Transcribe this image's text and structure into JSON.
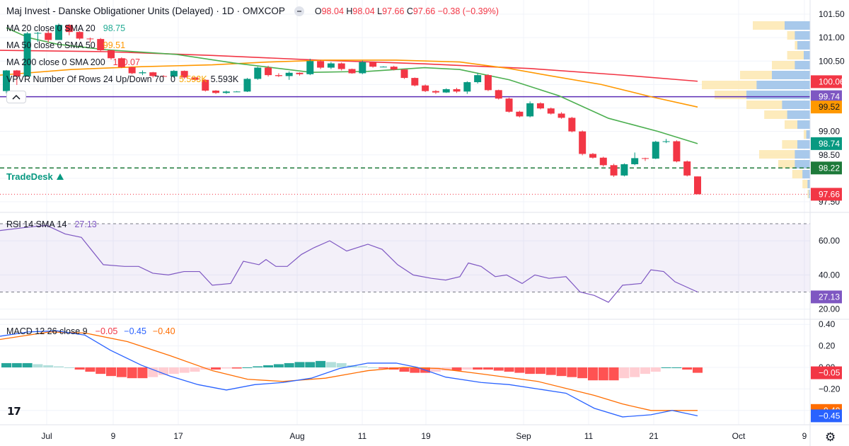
{
  "header": {
    "title": "Maj Invest - Danske Obligationer Units (Delayed) · 1D · OMXCOP",
    "ohlc": {
      "o_label": "O",
      "o": "98.04",
      "h_label": "H",
      "h": "98.04",
      "l_label": "L",
      "l": "97.66",
      "c_label": "C",
      "c": "97.66",
      "change": "−0.38 (−0.39%)"
    }
  },
  "indicators": {
    "ma20": {
      "label": "MA 20 close 0 SMA 20",
      "value": "98.75",
      "color": "#22ab94"
    },
    "ma50": {
      "label": "MA 50 close 0 SMA 50",
      "value": "99.51",
      "color": "#ff9800"
    },
    "ma200": {
      "label": "MA 200 close 0 SMA 200",
      "value": "100.07",
      "color": "#f23645"
    },
    "vpvr": {
      "label": "VPVR Number Of Rows 24 Up/Down 70",
      "v1": "0",
      "v2": "5.593K",
      "v3": "5.593K"
    },
    "rsi": {
      "label": "RSI 14 SMA 14",
      "value": "27.13",
      "color": "#7e57c2"
    },
    "macd": {
      "label": "MACD 12 26 close 9",
      "hist": "−0.05",
      "macd": "−0.45",
      "signal": "−0.40"
    }
  },
  "brand": "TradeDesk",
  "tv_logo": "17",
  "gear_icon": "⚙",
  "price_axis": {
    "ticks": [
      "101.50",
      "101.00",
      "100.50",
      "99.00",
      "98.50",
      "97.50"
    ],
    "tick_values": [
      101.5,
      101.0,
      100.5,
      99.0,
      98.5,
      97.5
    ],
    "badges": [
      {
        "text": "100.06",
        "value": 100.06,
        "color": "#f23645"
      },
      {
        "text": "99.74",
        "value": 99.74,
        "color": "#7e57c2"
      },
      {
        "text": "99.52",
        "value": 99.52,
        "color": "#ff9800"
      },
      {
        "text": "98.74",
        "value": 98.74,
        "color": "#089981"
      },
      {
        "text": "98.22",
        "value": 98.22,
        "color": "#1e7a3a"
      },
      {
        "text": "97.66",
        "value": 97.66,
        "color": "#f23645"
      }
    ]
  },
  "rsi_axis": {
    "ticks": [
      "60.00",
      "40.00",
      "20.00"
    ],
    "tick_values": [
      60,
      40,
      20
    ],
    "badge": "27.13"
  },
  "macd_axis": {
    "ticks": [
      "0.40",
      "0.20",
      "0.00",
      "−0.20"
    ],
    "tick_values": [
      0.4,
      0.2,
      0.0,
      -0.2
    ],
    "badges": [
      {
        "text": "−0.05",
        "value": -0.05,
        "color": "#f23645"
      },
      {
        "text": "−0.40",
        "value": -0.4,
        "color": "#ff6d00"
      },
      {
        "text": "−0.45",
        "value": -0.45,
        "color": "#2962ff"
      }
    ]
  },
  "time_axis": [
    "Jul",
    "9",
    "17",
    "Aug",
    "11",
    "19",
    "Sep",
    "11",
    "21",
    "Oct",
    "9"
  ],
  "chart_data": {
    "type": "candlestick",
    "candles": [
      [
        99.86,
        100.31,
        99.81,
        100.3
      ],
      [
        100.3,
        100.31,
        99.99,
        100.17
      ],
      [
        100.17,
        101.12,
        100.17,
        101.09
      ],
      [
        101.09,
        101.12,
        100.91,
        101.1
      ],
      [
        101.1,
        101.16,
        100.9,
        100.95
      ],
      [
        100.95,
        101.3,
        100.95,
        101.27
      ],
      [
        101.27,
        101.29,
        101.05,
        101.12
      ],
      [
        101.12,
        101.14,
        100.95,
        100.98
      ],
      [
        100.98,
        101.0,
        100.9,
        100.97
      ],
      [
        100.97,
        100.99,
        100.71,
        100.73
      ],
      [
        100.73,
        100.74,
        100.53,
        100.56
      ],
      [
        100.56,
        100.58,
        100.35,
        100.37
      ],
      [
        100.37,
        100.38,
        100.22,
        100.24
      ],
      [
        100.24,
        100.3,
        100.2,
        100.26
      ],
      [
        100.26,
        100.27,
        100.15,
        100.18
      ],
      [
        100.18,
        100.2,
        100.16,
        100.17
      ],
      [
        100.17,
        100.31,
        100.14,
        100.29
      ],
      [
        100.29,
        100.3,
        100.12,
        100.15
      ],
      [
        100.15,
        100.17,
        100.08,
        100.1
      ],
      [
        100.1,
        100.11,
        99.85,
        99.87
      ],
      [
        99.87,
        99.88,
        99.8,
        99.82
      ],
      [
        99.82,
        99.87,
        99.8,
        99.85
      ],
      [
        99.85,
        99.86,
        99.84,
        99.85
      ],
      [
        99.85,
        100.14,
        99.84,
        100.12
      ],
      [
        100.12,
        100.38,
        100.1,
        100.36
      ],
      [
        100.36,
        100.4,
        100.17,
        100.2
      ],
      [
        100.2,
        100.24,
        100.16,
        100.18
      ],
      [
        100.18,
        100.28,
        100.1,
        100.25
      ],
      [
        100.25,
        100.26,
        100.19,
        100.22
      ],
      [
        100.22,
        100.55,
        100.2,
        100.5
      ],
      [
        100.5,
        100.52,
        100.33,
        100.36
      ],
      [
        100.36,
        100.48,
        100.33,
        100.45
      ],
      [
        100.45,
        100.47,
        100.3,
        100.33
      ],
      [
        100.33,
        100.34,
        100.23,
        100.24
      ],
      [
        100.24,
        100.51,
        100.22,
        100.48
      ],
      [
        100.48,
        100.49,
        100.36,
        100.38
      ],
      [
        100.38,
        100.39,
        100.37,
        100.38
      ],
      [
        100.38,
        100.4,
        100.3,
        100.32
      ],
      [
        100.32,
        100.33,
        100.12,
        100.14
      ],
      [
        100.14,
        100.15,
        99.96,
        99.98
      ],
      [
        99.98,
        100.0,
        99.84,
        99.86
      ],
      [
        99.86,
        99.88,
        99.8,
        99.83
      ],
      [
        99.83,
        99.92,
        99.82,
        99.9
      ],
      [
        99.9,
        99.93,
        99.82,
        99.85
      ],
      [
        99.85,
        100.07,
        99.8,
        100.05
      ],
      [
        100.05,
        100.25,
        100.02,
        100.2
      ],
      [
        100.2,
        100.22,
        99.86,
        99.88
      ],
      [
        99.88,
        99.89,
        99.68,
        99.7
      ],
      [
        99.7,
        99.72,
        99.4,
        99.42
      ],
      [
        99.42,
        99.44,
        99.3,
        99.32
      ],
      [
        99.32,
        99.64,
        99.3,
        99.6
      ],
      [
        99.6,
        99.62,
        99.47,
        99.49
      ],
      [
        99.49,
        99.51,
        99.36,
        99.38
      ],
      [
        99.38,
        99.41,
        99.27,
        99.29
      ],
      [
        99.29,
        99.31,
        98.98,
        99.0
      ],
      [
        99.0,
        99.02,
        98.49,
        98.52
      ],
      [
        98.52,
        98.54,
        98.42,
        98.44
      ],
      [
        98.44,
        98.46,
        98.25,
        98.28
      ],
      [
        98.28,
        98.31,
        98.03,
        98.06
      ],
      [
        98.06,
        98.32,
        98.04,
        98.3
      ],
      [
        98.3,
        98.55,
        98.28,
        98.43
      ],
      [
        98.43,
        98.44,
        98.37,
        98.42
      ],
      [
        98.42,
        98.8,
        98.41,
        98.78
      ],
      [
        98.78,
        98.84,
        98.75,
        98.79
      ],
      [
        98.79,
        98.81,
        98.34,
        98.36
      ],
      [
        98.36,
        98.38,
        98.04,
        98.06
      ],
      [
        98.04,
        98.04,
        97.66,
        97.66
      ]
    ],
    "ma20": [
      [
        9,
        101.21
      ],
      [
        40,
        101.0
      ],
      [
        81,
        100.86
      ],
      [
        150,
        100.74
      ],
      [
        250,
        100.64
      ],
      [
        330,
        100.46
      ],
      [
        440,
        100.26
      ],
      [
        520,
        100.28
      ],
      [
        600,
        100.36
      ],
      [
        650,
        100.32
      ],
      [
        720,
        100.1
      ],
      [
        790,
        99.76
      ],
      [
        860,
        99.28
      ],
      [
        930,
        99.0
      ],
      [
        986,
        98.74
      ]
    ],
    "ma50": [
      [
        0,
        100.2
      ],
      [
        100,
        100.32
      ],
      [
        200,
        100.38
      ],
      [
        300,
        100.42
      ],
      [
        380,
        100.48
      ],
      [
        460,
        100.52
      ],
      [
        560,
        100.52
      ],
      [
        650,
        100.48
      ],
      [
        720,
        100.34
      ],
      [
        780,
        100.18
      ],
      [
        850,
        100.0
      ],
      [
        920,
        99.74
      ],
      [
        986,
        99.52
      ]
    ],
    "ma200": [
      [
        0,
        100.73
      ],
      [
        150,
        100.7
      ],
      [
        300,
        100.62
      ],
      [
        450,
        100.52
      ],
      [
        600,
        100.44
      ],
      [
        750,
        100.34
      ],
      [
        880,
        100.2
      ],
      [
        986,
        100.07
      ]
    ],
    "rsi": [
      [
        0,
        66
      ],
      [
        40,
        68
      ],
      [
        66,
        69
      ],
      [
        92,
        64
      ],
      [
        115,
        62
      ],
      [
        146,
        46
      ],
      [
        176,
        45
      ],
      [
        196,
        45
      ],
      [
        216,
        41
      ],
      [
        238,
        40
      ],
      [
        260,
        42
      ],
      [
        282,
        42
      ],
      [
        300,
        34
      ],
      [
        326,
        35
      ],
      [
        344,
        48
      ],
      [
        366,
        46
      ],
      [
        376,
        49
      ],
      [
        390,
        45
      ],
      [
        406,
        45
      ],
      [
        426,
        52
      ],
      [
        444,
        56
      ],
      [
        466,
        60
      ],
      [
        490,
        54
      ],
      [
        520,
        58
      ],
      [
        540,
        55
      ],
      [
        562,
        46
      ],
      [
        584,
        40
      ],
      [
        610,
        38
      ],
      [
        630,
        37
      ],
      [
        650,
        39
      ],
      [
        662,
        47
      ],
      [
        680,
        45
      ],
      [
        700,
        39
      ],
      [
        716,
        40
      ],
      [
        738,
        35
      ],
      [
        756,
        40
      ],
      [
        776,
        38
      ],
      [
        800,
        39
      ],
      [
        820,
        30
      ],
      [
        840,
        28
      ],
      [
        860,
        24
      ],
      [
        880,
        34
      ],
      [
        906,
        35
      ],
      [
        920,
        43
      ],
      [
        938,
        42
      ],
      [
        954,
        36
      ],
      [
        986,
        30
      ]
    ],
    "macd": [
      [
        0,
        0.29
      ],
      [
        40,
        0.33
      ],
      [
        80,
        0.34
      ],
      [
        120,
        0.3
      ],
      [
        156,
        0.16
      ],
      [
        200,
        0.02
      ],
      [
        240,
        -0.08
      ],
      [
        280,
        -0.16
      ],
      [
        320,
        -0.21
      ],
      [
        360,
        -0.16
      ],
      [
        400,
        -0.14
      ],
      [
        440,
        -0.1
      ],
      [
        480,
        -0.01
      ],
      [
        520,
        0.04
      ],
      [
        560,
        0.04
      ],
      [
        590,
        0.0
      ],
      [
        630,
        -0.09
      ],
      [
        680,
        -0.14
      ],
      [
        720,
        -0.16
      ],
      [
        760,
        -0.2
      ],
      [
        800,
        -0.24
      ],
      [
        840,
        -0.38
      ],
      [
        880,
        -0.46
      ],
      [
        920,
        -0.44
      ],
      [
        950,
        -0.4
      ],
      [
        986,
        -0.45
      ]
    ],
    "signal": [
      [
        0,
        0.26
      ],
      [
        40,
        0.3
      ],
      [
        70,
        0.33
      ],
      [
        120,
        0.32
      ],
      [
        180,
        0.24
      ],
      [
        240,
        0.11
      ],
      [
        300,
        -0.03
      ],
      [
        350,
        -0.11
      ],
      [
        400,
        -0.13
      ],
      [
        460,
        -0.1
      ],
      [
        520,
        -0.03
      ],
      [
        570,
        0.0
      ],
      [
        620,
        -0.01
      ],
      [
        680,
        -0.06
      ],
      [
        760,
        -0.13
      ],
      [
        840,
        -0.26
      ],
      [
        880,
        -0.34
      ],
      [
        920,
        -0.4
      ],
      [
        986,
        -0.4
      ]
    ],
    "hist": [
      0.04,
      0.04,
      0.04,
      0.03,
      0.02,
      0.01,
      0.0,
      -0.02,
      -0.04,
      -0.06,
      -0.08,
      -0.09,
      -0.1,
      -0.1,
      -0.09,
      -0.07,
      -0.06,
      -0.05,
      -0.04,
      -0.02,
      -0.02,
      -0.01,
      -0.01,
      0.0,
      0.01,
      0.02,
      0.03,
      0.04,
      0.05,
      0.05,
      0.06,
      0.05,
      0.04,
      0.02,
      0.01,
      0.0,
      -0.01,
      -0.02,
      -0.04,
      -0.05,
      -0.05,
      -0.04,
      -0.03,
      -0.03,
      -0.02,
      -0.02,
      -0.02,
      -0.03,
      -0.04,
      -0.05,
      -0.06,
      -0.06,
      -0.07,
      -0.08,
      -0.09,
      -0.1,
      -0.12,
      -0.12,
      -0.12,
      -0.1,
      -0.09,
      -0.06,
      -0.04,
      0.0,
      0.0,
      -0.02,
      -0.05
    ],
    "support_level": 98.22,
    "ma_200_level": 99.74,
    "last_price": 97.66,
    "rsi_upper": 70,
    "rsi_lower": 30
  }
}
